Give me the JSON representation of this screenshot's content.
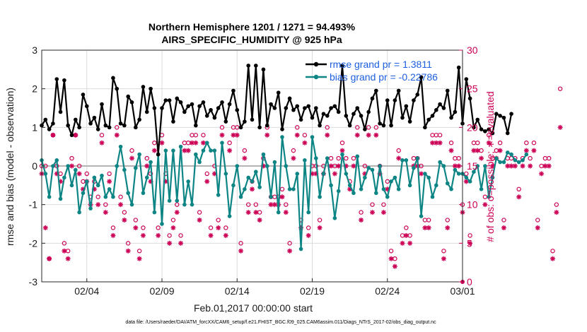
{
  "figure": {
    "title_line1": "Northern Hemisphere 1201 / 1271 = 94.493%",
    "title_line2": "AIRS_SPECIFIC_HUMIDITY @ 925 hPa",
    "xlabel": "Feb.01,2017 00:00:00 start",
    "ylabel_left": "rmse and bias (model - observation)",
    "ylabel_right": "# of obs: o=possible; ∗=evaluated",
    "footer": "data file: /Users/raeder/DAI/ATM_forcXX/CAM6_setup/f.e21.FHIST_BGC.f09_025.CAM6assim.011/Diags_NTrS_2017-02/obs_diag_output.nc"
  },
  "colors": {
    "rmse": "#000000",
    "bias": "#0e8585",
    "obs": "#cc0055",
    "zero_line": "#b4b4b4",
    "grid": "#dcdcdc"
  },
  "legend": {
    "rmse_label": "rmse grand pr = 1.3811",
    "bias_label": "bias grand pr = -0.22786"
  },
  "chart_data": {
    "type": "line",
    "x_start_day": 1.0,
    "x_step_days": 0.25,
    "xlim": [
      1.0,
      29.0
    ],
    "ylim_left": [
      -3,
      3
    ],
    "ylim_right": [
      0,
      30
    ],
    "x_ticks": [
      {
        "day": 4,
        "label": "02/04"
      },
      {
        "day": 9,
        "label": "02/09"
      },
      {
        "day": 14,
        "label": "02/14"
      },
      {
        "day": 19,
        "label": "02/19"
      },
      {
        "day": 24,
        "label": "02/24"
      },
      {
        "day": 29,
        "label": "03/01"
      }
    ],
    "y_ticks_left": [
      -3,
      -2,
      -1,
      0,
      1,
      2,
      3
    ],
    "y_ticks_right": [
      0,
      5,
      10,
      15,
      20,
      25,
      30
    ],
    "series": [
      {
        "name": "rmse",
        "axis": "left",
        "values": [
          1.05,
          1.2,
          0.95,
          1.1,
          2.25,
          1.4,
          2.22,
          1.05,
          0.8,
          1.2,
          1.0,
          1.85,
          1.55,
          1.1,
          1.25,
          0.95,
          1.6,
          1.05,
          1.0,
          2.28,
          2.0,
          1.1,
          1.05,
          1.8,
          1.65,
          1.0,
          1.2,
          2.05,
          1.4,
          2.0,
          1.5,
          0.3,
          1.5,
          1.7,
          1.7,
          1.15,
          1.75,
          1.65,
          1.4,
          1.55,
          1.6,
          1.05,
          1.55,
          1.65,
          1.3,
          1.45,
          1.25,
          1.5,
          1.65,
          1.15,
          1.6,
          1.95,
          1.45,
          1.0,
          1.15,
          2.6,
          1.2,
          2.6,
          1.0,
          2.5,
          1.05,
          1.6,
          1.5,
          1.9,
          0.95,
          1.5,
          1.75,
          1.45,
          1.55,
          1.2,
          1.5,
          1.55,
          1.25,
          1.5,
          1.05,
          1.35,
          1.3,
          1.5,
          1.55,
          1.4,
          2.6,
          1.3,
          1.05,
          1.35,
          1.5,
          1.3,
          0.95,
          1.4,
          1.75,
          1.95,
          1.1,
          1.05,
          1.7,
          1.05,
          1.7,
          1.95,
          1.25,
          1.55,
          1.15,
          1.7,
          1.85,
          2.3,
          1.0,
          1.2,
          1.3,
          1.45,
          1.6,
          1.5,
          1.95,
          1.25,
          1.4,
          2.55,
          1.1,
          2.25,
          1.75,
          1.0,
          1.2,
          0.95,
          0.9,
          0.95,
          0.85,
          1.35,
          1.3,
          1.25,
          0.85,
          1.35
        ]
      },
      {
        "name": "bias",
        "axis": "left",
        "values": [
          0.15,
          -0.2,
          -0.8,
          0.0,
          0.15,
          -0.85,
          -0.3,
          0.0,
          -0.5,
          -0.1,
          -1.2,
          -0.7,
          -0.4,
          -1.1,
          -0.3,
          -0.5,
          -0.25,
          -0.8,
          -0.6,
          -0.8,
          0.0,
          0.5,
          -0.1,
          -0.7,
          -1.0,
          -0.05,
          0.3,
          -0.7,
          -0.3,
          0.1,
          -1.2,
          0.3,
          -1.5,
          0.4,
          -0.9,
          0.4,
          -0.9,
          0.5,
          -1.0,
          -0.4,
          -1.0,
          0.3,
          0.1,
          0.4,
          0.6,
          0.4,
          0.4,
          -0.75,
          0.6,
          -0.2,
          -1.3,
          -0.5,
          0.0,
          -0.8,
          -0.6,
          -0.3,
          -0.4,
          -0.15,
          -0.55,
          0.3,
          0.0,
          -0.8,
          0.1,
          -1.2,
          0.75,
          0.0,
          -0.6,
          -0.6,
          -0.2,
          -2.15,
          0.15,
          -1.2,
          0.75,
          0.2,
          -0.8,
          -0.2,
          0.2,
          -0.5,
          -1.35,
          -0.65,
          0.3,
          -0.2,
          -0.5,
          -0.7,
          0.25,
          -0.6,
          -0.3,
          -0.05,
          -0.1,
          -0.7,
          0.0,
          -0.6,
          -0.8,
          -0.4,
          -0.3,
          -0.6,
          0.15,
          0.15,
          -0.5,
          -0.05,
          0.2,
          -1.3,
          -0.2,
          -0.3,
          -0.8,
          -0.5,
          0.1,
          0.0,
          -0.45,
          -0.6,
          -0.1,
          -0.2,
          -0.2,
          -0.3,
          -0.4,
          -0.15,
          0.0,
          -0.6,
          0.0,
          -0.8,
          -0.3,
          0.2,
          0.1,
          0.1,
          0.35,
          0.3,
          0.15,
          0.1,
          0.15,
          0.3
        ]
      },
      {
        "name": "obs possible",
        "axis": "right",
        "values": [
          15,
          15,
          3,
          19,
          15,
          14,
          5,
          4,
          16,
          19,
          15,
          13,
          14,
          11,
          13,
          11,
          19,
          10,
          14,
          7,
          20,
          11,
          9,
          5,
          17,
          8,
          4,
          7,
          16,
          14,
          18,
          7,
          19,
          14,
          6,
          8,
          10,
          6,
          18,
          18,
          19,
          19,
          9,
          19,
          14,
          7,
          15,
          8,
          20,
          7,
          18,
          20,
          20,
          5,
          17,
          10,
          13,
          10,
          9,
          16,
          20,
          11,
          11,
          11,
          12,
          10,
          5,
          17,
          20,
          8,
          19,
          7,
          15,
          15,
          8,
          15,
          20,
          16,
          15,
          16,
          18,
          16,
          13,
          16,
          20,
          9,
          15,
          20,
          10,
          20,
          15,
          10,
          13,
          4,
          3,
          17,
          6,
          7,
          6,
          16,
          16,
          15,
          8,
          8,
          19,
          19,
          19,
          4,
          8,
          18,
          16,
          16,
          10,
          14,
          6,
          18,
          18,
          17,
          11,
          19,
          16,
          17,
          18,
          8,
          16,
          16,
          16,
          12,
          16,
          18,
          16,
          18,
          8,
          15,
          16,
          16,
          4,
          10,
          25
        ]
      },
      {
        "name": "obs evaluated",
        "axis": "right",
        "values": [
          14,
          7,
          3,
          19,
          14,
          13,
          4,
          3,
          15,
          19,
          14,
          12,
          13,
          10,
          12,
          10,
          18,
          9,
          13,
          6,
          19,
          10,
          8,
          4,
          16,
          7,
          3,
          6,
          15,
          13,
          17,
          6,
          18,
          13,
          5,
          7,
          9,
          5,
          17,
          17,
          18,
          18,
          8,
          18,
          13,
          6,
          14,
          7,
          19,
          6,
          17,
          19,
          19,
          4,
          16,
          9,
          12,
          9,
          8,
          15,
          19,
          10,
          10,
          10,
          11,
          9,
          4,
          16,
          19,
          7,
          18,
          6,
          14,
          14,
          7,
          14,
          19,
          15,
          14,
          15,
          17,
          15,
          12,
          15,
          19,
          8,
          14,
          19,
          9,
          19,
          14,
          9,
          12,
          3,
          2,
          16,
          5,
          6,
          5,
          15,
          15,
          14,
          7,
          7,
          18,
          18,
          18,
          3,
          7,
          17,
          15,
          15,
          9,
          13,
          5,
          17,
          17,
          16,
          10,
          18,
          15,
          16,
          17,
          7,
          15,
          15,
          15,
          11,
          15,
          17,
          15,
          17,
          7,
          14,
          15,
          15,
          3,
          9,
          20
        ]
      }
    ]
  }
}
